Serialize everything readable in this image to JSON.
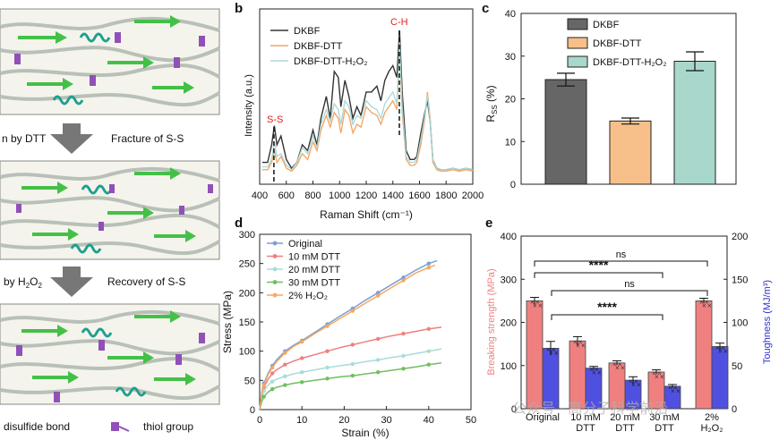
{
  "schematic": {
    "step1_left": "n by DTT",
    "step1_right": "Fracture of S-S",
    "step2_left": "by H",
    "step2_left_sub": "2",
    "step2_left_end": "O",
    "step2_left_sub2": "2",
    "step2_right": "Recovery of S-S",
    "legend_disulfide": "disulfide bond",
    "legend_thiol": "thiol group"
  },
  "panels": {
    "b": "b",
    "c": "c",
    "d": "d",
    "e": "e"
  },
  "watermark": "公众号 · 高分子科学前沿",
  "chart_data": [
    {
      "id": "b",
      "type": "line",
      "title": "",
      "xlabel": "Raman Shift (cm⁻¹)",
      "ylabel": "Intensity (a.u.)",
      "xlim": [
        400,
        2000
      ],
      "xticks": [
        "400",
        "600",
        "800",
        "1000",
        "1200",
        "1400",
        "1600",
        "1800",
        "2000"
      ],
      "annotations": [
        "S-S",
        "C-H"
      ],
      "series": [
        {
          "name": "DKBF",
          "color": "#333333",
          "x": [
            420,
            460,
            490,
            510,
            530,
            560,
            600,
            640,
            680,
            720,
            760,
            800,
            830,
            860,
            900,
            930,
            960,
            990,
            1010,
            1040,
            1070,
            1100,
            1130,
            1160,
            1200,
            1240,
            1280,
            1310,
            1340,
            1370,
            1400,
            1430,
            1450,
            1470,
            1500,
            1530,
            1560,
            1580,
            1610,
            1640,
            1660,
            1680,
            1700,
            1730,
            1760,
            1800,
            1850,
            1900,
            1950,
            2000
          ],
          "y": [
            0.1,
            0.1,
            0.22,
            0.35,
            0.22,
            0.28,
            0.12,
            0.06,
            0.1,
            0.22,
            0.18,
            0.32,
            0.22,
            0.4,
            0.55,
            0.4,
            0.72,
            0.68,
            0.48,
            0.66,
            0.55,
            0.4,
            0.48,
            0.42,
            0.58,
            0.58,
            0.62,
            0.52,
            0.66,
            0.72,
            0.76,
            0.68,
            1.0,
            0.58,
            0.18,
            0.12,
            0.12,
            0.14,
            0.3,
            0.44,
            0.52,
            0.38,
            0.12,
            0.06,
            0.05,
            0.05,
            0.06,
            0.05,
            0.06,
            0.05
          ]
        },
        {
          "name": "DKBF-DTT",
          "color": "#f4a460",
          "x": [
            420,
            460,
            490,
            510,
            530,
            560,
            600,
            640,
            680,
            720,
            760,
            800,
            830,
            860,
            900,
            930,
            960,
            990,
            1010,
            1040,
            1070,
            1100,
            1130,
            1160,
            1200,
            1240,
            1280,
            1310,
            1340,
            1370,
            1400,
            1430,
            1450,
            1470,
            1500,
            1530,
            1560,
            1580,
            1610,
            1640,
            1660,
            1680,
            1700,
            1730,
            1760,
            1800,
            1850,
            1900,
            1950,
            2000
          ],
          "y": [
            0.05,
            0.05,
            0.1,
            0.18,
            0.1,
            0.14,
            0.06,
            0.04,
            0.08,
            0.16,
            0.12,
            0.24,
            0.18,
            0.32,
            0.42,
            0.34,
            0.44,
            0.4,
            0.3,
            0.46,
            0.42,
            0.3,
            0.36,
            0.34,
            0.48,
            0.44,
            0.42,
            0.36,
            0.44,
            0.48,
            0.52,
            0.46,
            0.88,
            0.44,
            0.12,
            0.08,
            0.08,
            0.1,
            0.22,
            0.4,
            0.58,
            0.4,
            0.1,
            0.05,
            0.04,
            0.04,
            0.05,
            0.04,
            0.05,
            0.04
          ]
        },
        {
          "name": "DKBF-DTT-H₂O₂",
          "color": "#a8d8d8",
          "x": [
            420,
            460,
            490,
            510,
            530,
            560,
            600,
            640,
            680,
            720,
            760,
            800,
            830,
            860,
            900,
            930,
            960,
            990,
            1010,
            1040,
            1070,
            1100,
            1130,
            1160,
            1200,
            1240,
            1280,
            1310,
            1340,
            1370,
            1400,
            1430,
            1450,
            1470,
            1500,
            1530,
            1560,
            1580,
            1610,
            1640,
            1660,
            1680,
            1700,
            1730,
            1760,
            1800,
            1850,
            1900,
            1950,
            2000
          ],
          "y": [
            0.07,
            0.07,
            0.12,
            0.24,
            0.14,
            0.16,
            0.08,
            0.05,
            0.1,
            0.2,
            0.16,
            0.28,
            0.2,
            0.36,
            0.46,
            0.38,
            0.5,
            0.46,
            0.36,
            0.52,
            0.48,
            0.36,
            0.42,
            0.4,
            0.52,
            0.48,
            0.46,
            0.4,
            0.5,
            0.54,
            0.58,
            0.5,
            0.92,
            0.48,
            0.14,
            0.1,
            0.1,
            0.12,
            0.26,
            0.42,
            0.56,
            0.38,
            0.12,
            0.06,
            0.05,
            0.05,
            0.06,
            0.05,
            0.06,
            0.05
          ]
        }
      ]
    },
    {
      "id": "c",
      "type": "bar",
      "title": "",
      "xlabel": "",
      "ylabel": "R",
      "ylabel_sub": "SS",
      "ylabel_end": " (%)",
      "ylim": [
        0,
        40
      ],
      "yticks": [
        "0",
        "10",
        "20",
        "30",
        "40"
      ],
      "categories": [
        "DKBF",
        "DKBF-DTT",
        "DKBF-DTT-H₂O₂"
      ],
      "values": [
        24.5,
        14.8,
        28.8
      ],
      "errors": [
        1.5,
        0.7,
        2.2
      ],
      "colors": [
        "#666666",
        "#f7c08a",
        "#a8d8cc"
      ]
    },
    {
      "id": "d",
      "type": "line",
      "title": "",
      "xlabel": "Strain (%)",
      "ylabel": "Stress (MPa)",
      "xlim": [
        0,
        50
      ],
      "ylim": [
        0,
        300
      ],
      "xticks": [
        "0",
        "10",
        "20",
        "30",
        "40",
        "50"
      ],
      "yticks": [
        "0",
        "50",
        "100",
        "150",
        "200",
        "250",
        "300"
      ],
      "series": [
        {
          "name": "Original",
          "color": "#7b9fd4",
          "x": [
            0,
            0.5,
            1,
            2,
            3,
            4,
            6,
            8,
            10,
            13,
            16,
            19,
            22,
            25,
            28,
            31,
            34,
            37,
            40,
            42
          ],
          "y": [
            0,
            30,
            45,
            62,
            75,
            85,
            100,
            110,
            118,
            132,
            146,
            160,
            173,
            187,
            200,
            213,
            226,
            239,
            250,
            255
          ]
        },
        {
          "name": "10 mM DTT",
          "color": "#ee8080",
          "x": [
            0,
            0.5,
            1,
            2,
            3,
            4,
            6,
            8,
            10,
            13,
            16,
            19,
            22,
            25,
            28,
            31,
            34,
            37,
            40,
            43
          ],
          "y": [
            0,
            25,
            38,
            52,
            62,
            68,
            77,
            83,
            88,
            94,
            100,
            106,
            111,
            116,
            121,
            126,
            130,
            134,
            138,
            141
          ]
        },
        {
          "name": "20 mM DTT",
          "color": "#a8dcd8",
          "x": [
            0,
            0.5,
            1,
            2,
            3,
            4,
            6,
            8,
            10,
            13,
            16,
            19,
            22,
            25,
            28,
            31,
            34,
            37,
            40,
            43
          ],
          "y": [
            0,
            20,
            32,
            42,
            48,
            52,
            57,
            61,
            64,
            68,
            72,
            75,
            78,
            82,
            85,
            89,
            92,
            96,
            100,
            104
          ]
        },
        {
          "name": "30 mM DTT",
          "color": "#6fbf60",
          "x": [
            0,
            0.5,
            1,
            2,
            3,
            4,
            6,
            8,
            10,
            13,
            16,
            19,
            22,
            25,
            28,
            31,
            34,
            37,
            40,
            43
          ],
          "y": [
            0,
            14,
            22,
            30,
            35,
            38,
            42,
            45,
            47,
            50,
            53,
            56,
            58,
            61,
            64,
            67,
            70,
            73,
            77,
            80
          ]
        },
        {
          "name": "2% H₂O₂",
          "color": "#f4a860",
          "x": [
            0,
            0.5,
            1,
            2,
            3,
            4,
            6,
            8,
            10,
            13,
            16,
            19,
            22,
            25,
            28,
            31,
            34,
            37,
            40,
            41.5
          ],
          "y": [
            0,
            28,
            42,
            60,
            72,
            82,
            97,
            108,
            116,
            130,
            143,
            156,
            169,
            182,
            195,
            208,
            221,
            234,
            243,
            247
          ]
        }
      ]
    },
    {
      "id": "e",
      "type": "bar",
      "title": "",
      "xlabel": "",
      "ylabel": "Breaking strength  (MPa)",
      "y2label": "Toughness (MJ/m³)",
      "ylim": [
        0,
        400
      ],
      "y2lim": [
        0,
        200
      ],
      "yticks": [
        "0",
        "100",
        "200",
        "300",
        "400"
      ],
      "y2ticks": [
        "0",
        "50",
        "100",
        "150",
        "200"
      ],
      "categories": [
        "Original",
        "10 mM DTT",
        "20 mM DTT",
        "30 mM DTT",
        "2% H₂O₂"
      ],
      "series": [
        {
          "name": "Breaking strength",
          "color": "#f08080",
          "values": [
            250,
            157,
            106,
            85,
            250
          ],
          "errors": [
            8,
            10,
            5,
            5,
            6
          ]
        },
        {
          "name": "Toughness",
          "color": "#5050e0",
          "values": [
            70,
            47,
            33,
            26,
            72
          ],
          "errors": [
            8,
            2,
            4,
            2,
            4
          ]
        }
      ],
      "significance": [
        "ns",
        "****",
        "ns",
        "****"
      ]
    }
  ]
}
